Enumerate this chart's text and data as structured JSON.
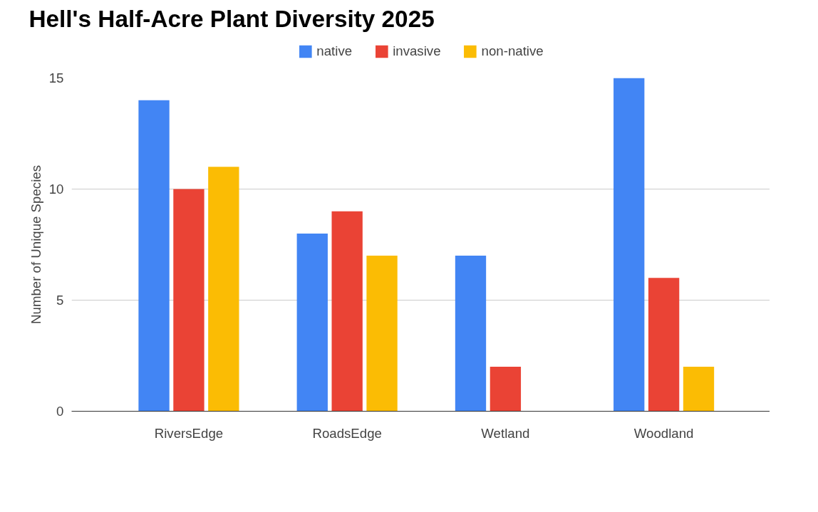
{
  "chart_data": {
    "type": "bar",
    "title": "Hell's Half-Acre Plant Diversity 2025",
    "ylabel": "Number of Unique Species",
    "categories": [
      "RiversEdge",
      "RoadsEdge",
      "Wetland",
      "Woodland"
    ],
    "series": [
      {
        "name": "native",
        "color": "#4285f4",
        "values": [
          14,
          8,
          7,
          15
        ]
      },
      {
        "name": "invasive",
        "color": "#ea4335",
        "values": [
          10,
          9,
          2,
          6
        ]
      },
      {
        "name": "non-native",
        "color": "#fbbc04",
        "values": [
          11,
          7,
          0,
          2
        ]
      }
    ],
    "ylim": [
      0,
      15
    ],
    "yticks": [
      0,
      5,
      10,
      15
    ],
    "grid": "y",
    "legend": "top"
  }
}
